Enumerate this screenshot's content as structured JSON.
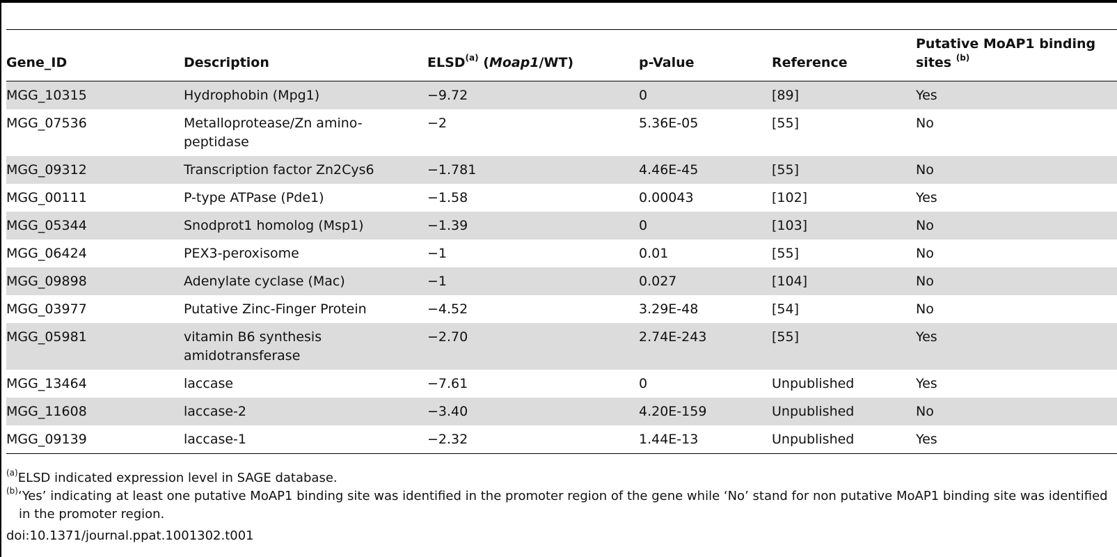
{
  "table": {
    "headers": {
      "gene_id": "Gene_ID",
      "description": "Description",
      "elsd_label": "ELSD",
      "elsd_sup": "(a)",
      "elsd_paren_open": " (",
      "elsd_italic": "Moap1",
      "elsd_rest": "/WT)",
      "pvalue": "p-Value",
      "reference": "Reference",
      "binding": "Putative MoAP1 binding sites",
      "binding_sup": "(b)"
    },
    "rows": [
      {
        "gene_id": "MGG_10315",
        "description": "Hydrophobin (Mpg1)",
        "elsd": "−9.72",
        "pvalue": "0",
        "reference": "[89]",
        "binding": "Yes"
      },
      {
        "gene_id": "MGG_07536",
        "description": "Metalloprotease/Zn amino-peptidase",
        "elsd": "−2",
        "pvalue": "5.36E-05",
        "reference": "[55]",
        "binding": "No"
      },
      {
        "gene_id": "MGG_09312",
        "description": "Transcription factor Zn2Cys6",
        "elsd": "−1.781",
        "pvalue": "4.46E-45",
        "reference": "[55]",
        "binding": "No"
      },
      {
        "gene_id": "MGG_00111",
        "description": "P-type ATPase (Pde1)",
        "elsd": "−1.58",
        "pvalue": "0.00043",
        "reference": "[102]",
        "binding": "Yes"
      },
      {
        "gene_id": "MGG_05344",
        "description": "Snodprot1 homolog (Msp1)",
        "elsd": "−1.39",
        "pvalue": "0",
        "reference": "[103]",
        "binding": "No"
      },
      {
        "gene_id": "MGG_06424",
        "description": "PEX3-peroxisome",
        "elsd": "−1",
        "pvalue": "0.01",
        "reference": "[55]",
        "binding": "No"
      },
      {
        "gene_id": "MGG_09898",
        "description": "Adenylate cyclase (Mac)",
        "elsd": "−1",
        "pvalue": "0.027",
        "reference": "[104]",
        "binding": "No"
      },
      {
        "gene_id": "MGG_03977",
        "description": "Putative Zinc-Finger Protein",
        "elsd": "−4.52",
        "pvalue": "3.29E-48",
        "reference": "[54]",
        "binding": "No"
      },
      {
        "gene_id": "MGG_05981",
        "description": "vitamin B6 synthesis amidotransferase",
        "elsd": "−2.70",
        "pvalue": "2.74E-243",
        "reference": "[55]",
        "binding": "Yes"
      },
      {
        "gene_id": "MGG_13464",
        "description": "laccase",
        "elsd": "−7.61",
        "pvalue": "0",
        "reference": "Unpublished",
        "binding": "Yes"
      },
      {
        "gene_id": "MGG_11608",
        "description": "laccase-2",
        "elsd": "−3.40",
        "pvalue": "4.20E-159",
        "reference": "Unpublished",
        "binding": "No"
      },
      {
        "gene_id": "MGG_09139",
        "description": "laccase-1",
        "elsd": "−2.32",
        "pvalue": "1.44E-13",
        "reference": "Unpublished",
        "binding": "Yes"
      }
    ]
  },
  "footnotes": [
    {
      "marker": "(a)",
      "text": "ELSD indicated expression level in SAGE database."
    },
    {
      "marker": "(b)",
      "text": "‘Yes’ indicating at least one putative MoAP1 binding site was identified in the promoter region of the gene while ‘No’ stand for non putative MoAP1 binding site was identified in the promoter region."
    }
  ],
  "doi": "doi:10.1371/journal.ppat.1001302.t001"
}
